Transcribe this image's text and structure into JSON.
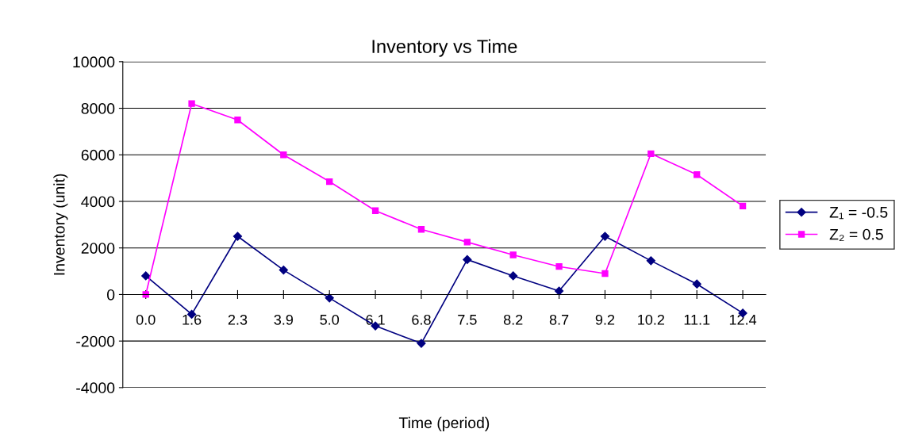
{
  "chart_data": {
    "type": "line",
    "title": "Inventory vs Time",
    "xlabel": "Time (period)",
    "ylabel": "Inventory (unit)",
    "categories": [
      "0.0",
      "1.6",
      "2.3",
      "3.9",
      "5.0",
      "6.1",
      "6.8",
      "7.5",
      "8.2",
      "8.7",
      "9.2",
      "10.2",
      "11.1",
      "12.4"
    ],
    "series": [
      {
        "name": "Z₁ = -0.5",
        "color": "#000080",
        "marker": "diamond",
        "values": [
          800,
          -850,
          2500,
          1050,
          -150,
          -1350,
          -2100,
          1500,
          800,
          150,
          2500,
          1450,
          450,
          -800
        ]
      },
      {
        "name": "Z₂ = 0.5",
        "color": "#ff00ff",
        "marker": "square",
        "values": [
          0,
          8200,
          7500,
          6000,
          4850,
          3600,
          2800,
          2250,
          1700,
          1200,
          900,
          6050,
          5150,
          3800
        ]
      }
    ],
    "ylim": [
      -4000,
      10000
    ],
    "yticks": [
      -4000,
      -2000,
      0,
      2000,
      4000,
      6000,
      8000,
      10000
    ],
    "grid": "y",
    "legend": "right",
    "line_style": "solid"
  }
}
